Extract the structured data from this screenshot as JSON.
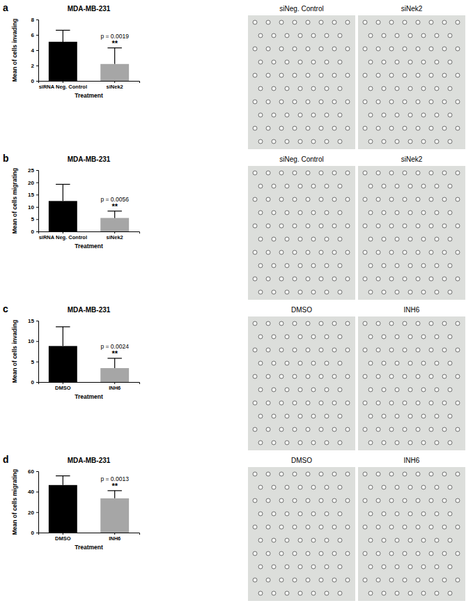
{
  "chart_data": [
    {
      "type": "bar",
      "panel": "a",
      "title": "MDA-MB-231",
      "y_label": "Mean of cells invading",
      "x_label": "Treatment",
      "categories": [
        "siRNA Neg. Control",
        "siNek2"
      ],
      "values": [
        5.1,
        2.2
      ],
      "errors": [
        1.5,
        2.1
      ],
      "colors": [
        "#000000",
        "#a6a6a6"
      ],
      "ylim": [
        0,
        8
      ],
      "yticks": [
        0,
        2,
        4,
        6,
        8
      ],
      "annotations": [
        "p = 0.0019",
        "**"
      ],
      "image_labels": [
        "siNeg. Control",
        "siNek2"
      ]
    },
    {
      "type": "bar",
      "panel": "b",
      "title": "MDA-MB-231",
      "y_label": "Mean of cells migrating",
      "x_label": "Treatment",
      "categories": [
        "siRNA Neg. Control",
        "siNek2"
      ],
      "values": [
        12.4,
        5.5
      ],
      "errors": [
        6.8,
        2.8
      ],
      "colors": [
        "#000000",
        "#a6a6a6"
      ],
      "ylim": [
        0,
        25
      ],
      "yticks": [
        0,
        5,
        10,
        15,
        20,
        25
      ],
      "annotations": [
        "p = 0.0056",
        "**"
      ],
      "image_labels": [
        "siNeg. Control",
        "siNek2"
      ]
    },
    {
      "type": "bar",
      "panel": "c",
      "title": "MDA-MB-231",
      "y_label": "Mean of cells invading",
      "x_label": "Treatment",
      "categories": [
        "DMSO",
        "INH6"
      ],
      "values": [
        8.8,
        3.4
      ],
      "errors": [
        4.7,
        2.4
      ],
      "colors": [
        "#000000",
        "#a6a6a6"
      ],
      "ylim": [
        0,
        15
      ],
      "yticks": [
        0,
        5,
        10,
        15
      ],
      "annotations": [
        "p = 0.0024",
        "**"
      ],
      "image_labels": [
        "DMSO",
        "INH6"
      ]
    },
    {
      "type": "bar",
      "panel": "d",
      "title": "MDA-MB-231",
      "y_label": "Mean of cells migrating",
      "x_label": "Treatment",
      "categories": [
        "DMSO",
        "INH6"
      ],
      "values": [
        46.5,
        33.5
      ],
      "errors": [
        9,
        7.5
      ],
      "colors": [
        "#000000",
        "#a6a6a6"
      ],
      "ylim": [
        0,
        60
      ],
      "yticks": [
        0,
        20,
        40,
        60
      ],
      "annotations": [
        "p = 0.0013",
        "**"
      ],
      "image_labels": [
        "DMSO",
        "INH6"
      ]
    }
  ]
}
